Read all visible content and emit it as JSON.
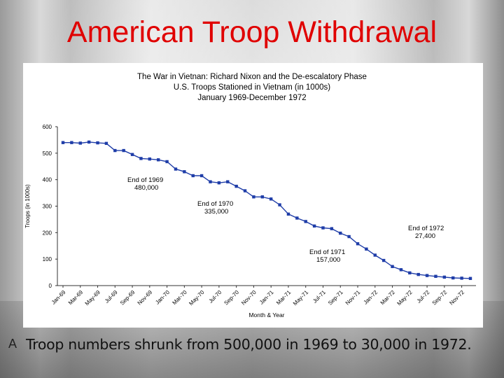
{
  "slide": {
    "title": "American Troop Withdrawal",
    "bullet_glyph": "A",
    "bullet_text": "Troop numbers shrunk from 500,000 in 1969 to 30,000 in 1972."
  },
  "chart_data": {
    "type": "line",
    "title_lines": [
      "The War in Vietnan: Richard Nixon and the De-escalatory Phase",
      "U.S. Troops Stationed in Vietnam (in 1000s)",
      "January 1969-December 1972"
    ],
    "xlabel": "Month & Year",
    "ylabel": "Troops (in 1000s)",
    "ylim": [
      0,
      600
    ],
    "yticks": [
      0,
      100,
      200,
      300,
      400,
      500,
      600
    ],
    "grid": false,
    "legend": "none",
    "line_color": "#1f3da8",
    "x_tick_labels": [
      "Jan-69",
      "Mar-69",
      "May-69",
      "Jul-69",
      "Sep-69",
      "Nov-69",
      "Jan-70",
      "Mar-70",
      "May-70",
      "Jul-70",
      "Sep-70",
      "Nov-70",
      "Jan-71",
      "Mar-71",
      "May-71",
      "Jul-71",
      "Sep-71",
      "Nov-71",
      "Jan-72",
      "Mar-72",
      "May-72",
      "Jul-72",
      "Sep-72",
      "Nov-72"
    ],
    "series": [
      {
        "values": [
          540,
          540,
          538,
          542,
          539,
          537,
          510,
          510,
          495,
          480,
          478,
          475,
          468,
          440,
          430,
          415,
          415,
          392,
          388,
          392,
          375,
          358,
          335,
          335,
          327,
          305,
          270,
          255,
          242,
          225,
          218,
          215,
          198,
          185,
          158,
          138,
          115,
          95,
          72,
          60,
          48,
          42,
          38,
          35,
          32,
          29,
          28,
          27
        ]
      }
    ],
    "annotations": [
      {
        "lines": [
          "End of 1969",
          "480,000"
        ]
      },
      {
        "lines": [
          "End of 1970",
          "335,000"
        ]
      },
      {
        "lines": [
          "End of 1971",
          "157,000"
        ]
      },
      {
        "lines": [
          "End of 1972",
          "27,400"
        ]
      }
    ]
  }
}
